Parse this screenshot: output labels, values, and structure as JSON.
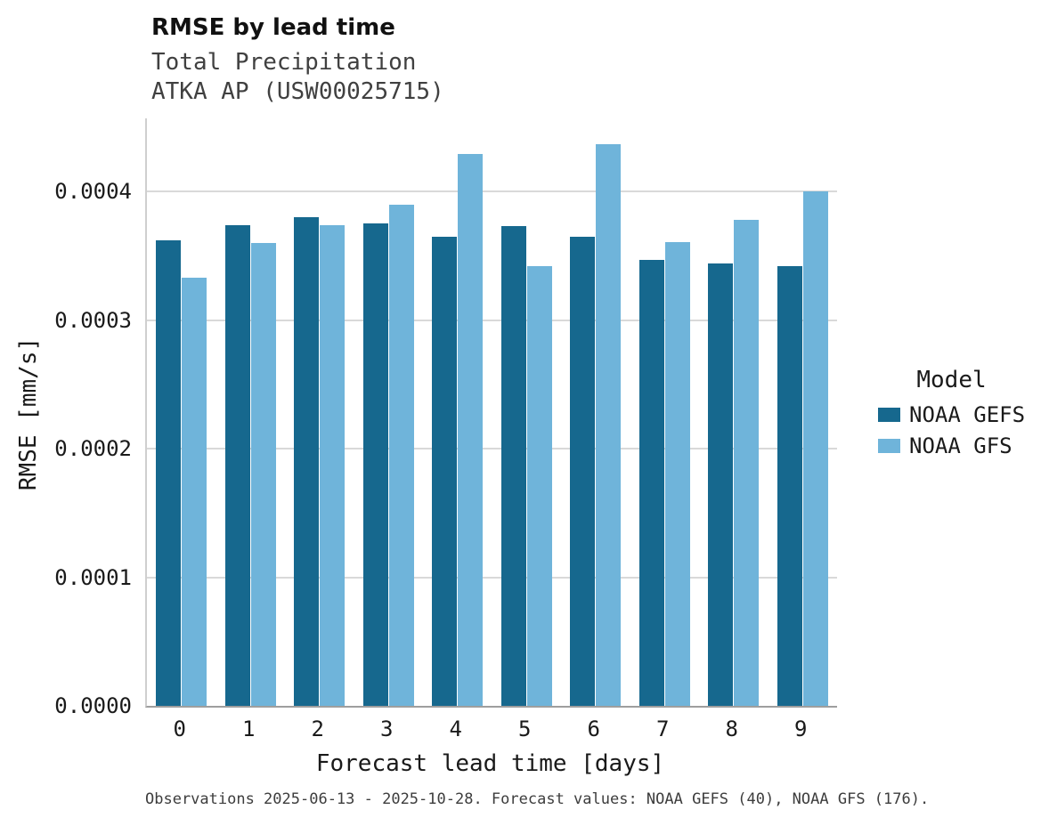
{
  "chart_data": {
    "type": "bar",
    "title": "RMSE by lead time",
    "subtitle_line1": "Total Precipitation",
    "subtitle_line2": "ATKA AP (USW00025715)",
    "xlabel": "Forecast lead time [days]",
    "ylabel": "RMSE [mm/s]",
    "legend_title": "Model",
    "legend_position": "right",
    "grid": "horizontal",
    "categories": [
      "0",
      "1",
      "2",
      "3",
      "4",
      "5",
      "6",
      "7",
      "8",
      "9"
    ],
    "series": [
      {
        "name": "NOAA GEFS",
        "color": "#16688e",
        "values": [
          0.000362,
          0.000374,
          0.00038,
          0.000375,
          0.000365,
          0.000373,
          0.000365,
          0.000347,
          0.000344,
          0.000342
        ]
      },
      {
        "name": "NOAA GFS",
        "color": "#6fb4da",
        "values": [
          0.000333,
          0.00036,
          0.000374,
          0.00039,
          0.000429,
          0.000342,
          0.000437,
          0.000361,
          0.000378,
          0.0004
        ]
      }
    ],
    "ylim": [
      0,
      0.000457
    ],
    "yticks": [
      0,
      0.0001,
      0.0002,
      0.0003,
      0.0004
    ],
    "ytick_labels": [
      "0.0000",
      "0.0001",
      "0.0002",
      "0.0003",
      "0.0004"
    ],
    "caption": "Observations 2025-06-13 - 2025-10-28. Forecast values: NOAA GEFS (40), NOAA GFS (176)."
  }
}
